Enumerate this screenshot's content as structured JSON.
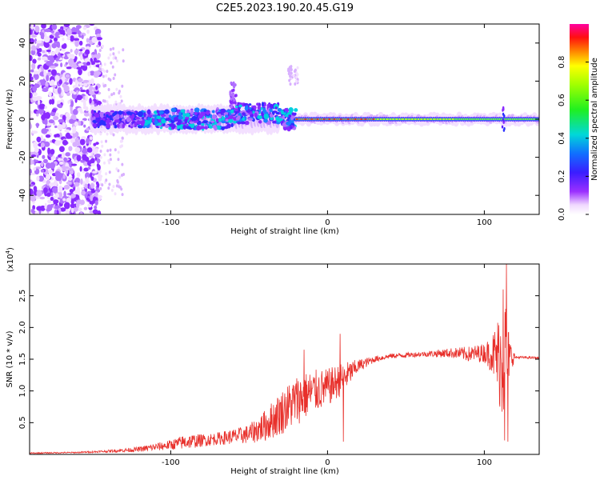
{
  "title": "C2E5.2023.190.20.45.G19",
  "chart_data": [
    {
      "type": "heatmap",
      "xlabel": "Height of straight line (km)",
      "ylabel": "Frequency (Hz)",
      "xlim": [
        -190,
        135
      ],
      "ylim": [
        -50,
        50
      ],
      "xticks": [
        -100,
        0,
        100
      ],
      "yticks": [
        -40,
        -20,
        0,
        20,
        40
      ],
      "colorbar": {
        "label": "Normalized spectral amplitude",
        "range": [
          0,
          1
        ],
        "ticks": [
          0.0,
          0.2,
          0.4,
          0.6,
          0.8
        ]
      }
    },
    {
      "type": "line",
      "xlabel": "Height of straight line (km)",
      "ylabel": "SNR (10 * v/v)",
      "y_multiplier": "(x10",
      "y_multiplier_exp": "4",
      "xlim": [
        -190,
        135
      ],
      "ylim": [
        0,
        3.0
      ],
      "xticks": [
        -100,
        0,
        100
      ],
      "yticks": [
        0.5,
        1.0,
        1.5,
        2.0,
        2.5
      ],
      "color": "#e8302b",
      "envelope": {
        "x": [
          -190,
          -160,
          -140,
          -120,
          -100,
          -90,
          -80,
          -70,
          -60,
          -50,
          -40,
          -30,
          -20,
          -10,
          0,
          10,
          20,
          30,
          40,
          60,
          80,
          90,
          100,
          105,
          110,
          113,
          116,
          120,
          135
        ],
        "base": [
          0.02,
          0.03,
          0.05,
          0.08,
          0.15,
          0.2,
          0.22,
          0.25,
          0.28,
          0.32,
          0.45,
          0.65,
          0.85,
          0.98,
          1.05,
          1.2,
          1.4,
          1.5,
          1.55,
          1.58,
          1.6,
          1.58,
          1.6,
          1.58,
          1.5,
          1.5,
          1.55,
          1.53,
          1.52
        ],
        "amp": [
          0.01,
          0.01,
          0.02,
          0.04,
          0.08,
          0.12,
          0.1,
          0.1,
          0.12,
          0.15,
          0.25,
          0.35,
          0.4,
          0.35,
          0.3,
          0.25,
          0.1,
          0.05,
          0.04,
          0.04,
          0.08,
          0.12,
          0.15,
          0.3,
          0.8,
          1.2,
          0.3,
          0.02,
          0.02
        ]
      },
      "peaks": [
        {
          "x": -15,
          "y": 1.65
        },
        {
          "x": 8,
          "y": 1.9
        },
        {
          "x": 10,
          "y": 0.2
        },
        {
          "x": 112,
          "y": 2.6
        },
        {
          "x": 113,
          "y": 0.22
        },
        {
          "x": 114,
          "y": 3.0
        },
        {
          "x": 115,
          "y": 0.2
        }
      ]
    }
  ]
}
